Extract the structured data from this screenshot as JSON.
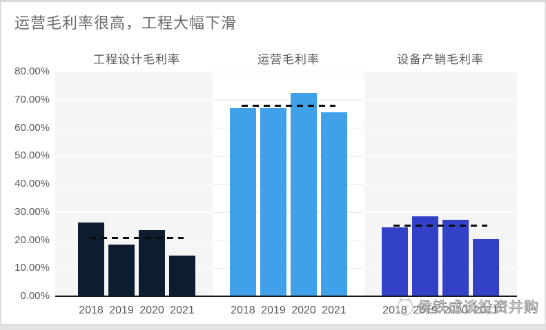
{
  "title": "运营毛利率很高，工程大幅下滑",
  "watermark": {
    "text": "侯铁成谈投资并购",
    "logo": "cat-face-logo"
  },
  "colors": {
    "title_text": "#6a6a6a",
    "axis_text": "#595959",
    "axis_line": "#1a1a1a",
    "average_dash": "#0a0a0a",
    "panel_gray": "#f5f5f6",
    "panel_white": "#ffffff",
    "engineering_bar": "#0d1d2f",
    "operations_bar": "#40a0e9",
    "equipment_bar": "#3341c7"
  },
  "chart_data": {
    "type": "bar",
    "title": "运营毛利率很高，工程大幅下滑",
    "categories": [
      "2018",
      "2019",
      "2020",
      "2021"
    ],
    "groups": [
      {
        "name": "工程设计毛利率",
        "values": [
          26.3,
          18.4,
          23.5,
          14.5
        ],
        "average": 20.7,
        "color": "#0d1d2f",
        "panel": "gray"
      },
      {
        "name": "运营毛利率",
        "values": [
          67.0,
          66.9,
          72.3,
          65.4
        ],
        "average": 67.9,
        "color": "#40a0e9",
        "panel": "white"
      },
      {
        "name": "设备产销毛利率",
        "values": [
          24.5,
          28.4,
          27.2,
          20.4
        ],
        "average": 25.1,
        "color": "#3341c7",
        "panel": "gray"
      }
    ],
    "xlabel": "",
    "ylabel": "",
    "ylim": [
      0,
      80
    ],
    "ytick_step": 10,
    "ytick_labels": [
      "0.00%",
      "10.00%",
      "20.00%",
      "30.00%",
      "40.00%",
      "50.00%",
      "60.00%",
      "70.00%",
      "80.00%"
    ],
    "grid": true,
    "average_line_style": "dashed-black",
    "legend_position": "panel-headers-top"
  }
}
